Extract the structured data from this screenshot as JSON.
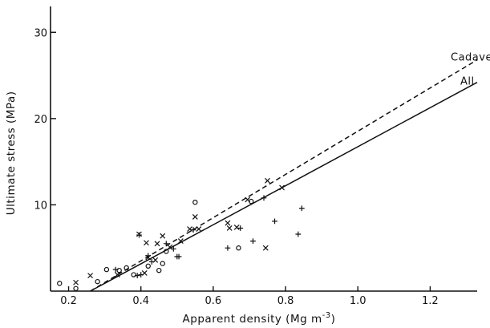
{
  "chart_data": {
    "type": "scatter",
    "title": "",
    "xlabel": "Apparent density (Mg m",
    "xlabel_sup": "-3",
    "xlabel_end": ")",
    "ylabel": "Ultimate stress (MPa)",
    "xlim": [
      0.15,
      1.33
    ],
    "ylim": [
      0,
      33
    ],
    "xticks": [
      0.2,
      0.4,
      0.6,
      0.8,
      1.0,
      1.2
    ],
    "xtick_labels": [
      "0.2",
      "0.4",
      "0.6",
      "0.8",
      "1.0",
      "1.2"
    ],
    "yticks": [
      10,
      20,
      30
    ],
    "ytick_labels": [
      "10",
      "20",
      "30"
    ],
    "grid": false,
    "legend": "none",
    "lines": [
      {
        "name": "Cadaveric",
        "style": "dashed",
        "x": [
          0.26,
          1.33
        ],
        "y": [
          0,
          26.8
        ]
      },
      {
        "name": "All",
        "style": "solid",
        "x": [
          0.26,
          1.33
        ],
        "y": [
          0,
          24.2
        ]
      }
    ],
    "series": [
      {
        "name": "",
        "marker": "circle",
        "points": [
          [
            0.175,
            0.9
          ],
          [
            0.22,
            0.3
          ],
          [
            0.28,
            1.1
          ],
          [
            0.305,
            2.5
          ],
          [
            0.34,
            2.4
          ],
          [
            0.36,
            2.7
          ],
          [
            0.38,
            1.9
          ],
          [
            0.42,
            2.9
          ],
          [
            0.45,
            2.4
          ],
          [
            0.46,
            3.2
          ],
          [
            0.47,
            4.6
          ],
          [
            0.55,
            10.3
          ],
          [
            0.67,
            5.0
          ],
          [
            0.705,
            10.4
          ]
        ]
      },
      {
        "name": "",
        "marker": "cross",
        "points": [
          [
            0.22,
            1.0
          ],
          [
            0.26,
            1.8
          ],
          [
            0.335,
            1.9
          ],
          [
            0.395,
            6.6
          ],
          [
            0.41,
            2.1
          ],
          [
            0.415,
            5.6
          ],
          [
            0.42,
            3.9
          ],
          [
            0.44,
            3.6
          ],
          [
            0.445,
            5.5
          ],
          [
            0.46,
            6.4
          ],
          [
            0.48,
            5.1
          ],
          [
            0.51,
            5.8
          ],
          [
            0.535,
            7.2
          ],
          [
            0.55,
            8.6
          ],
          [
            0.56,
            7.2
          ],
          [
            0.64,
            7.9
          ],
          [
            0.645,
            7.3
          ],
          [
            0.665,
            7.4
          ],
          [
            0.695,
            10.6
          ],
          [
            0.745,
            5.0
          ],
          [
            0.75,
            12.8
          ],
          [
            0.79,
            12.0
          ]
        ]
      },
      {
        "name": "",
        "marker": "plus",
        "points": [
          [
            0.33,
            2.5
          ],
          [
            0.39,
            1.8
          ],
          [
            0.395,
            6.5
          ],
          [
            0.4,
            1.9
          ],
          [
            0.42,
            4.1
          ],
          [
            0.43,
            3.4
          ],
          [
            0.47,
            5.5
          ],
          [
            0.49,
            4.9
          ],
          [
            0.5,
            4.0
          ],
          [
            0.505,
            4.0
          ],
          [
            0.545,
            7.1
          ],
          [
            0.64,
            5.0
          ],
          [
            0.675,
            7.3
          ],
          [
            0.71,
            5.8
          ],
          [
            0.74,
            10.8
          ],
          [
            0.77,
            8.1
          ],
          [
            0.835,
            6.6
          ],
          [
            0.845,
            9.6
          ]
        ]
      }
    ]
  }
}
